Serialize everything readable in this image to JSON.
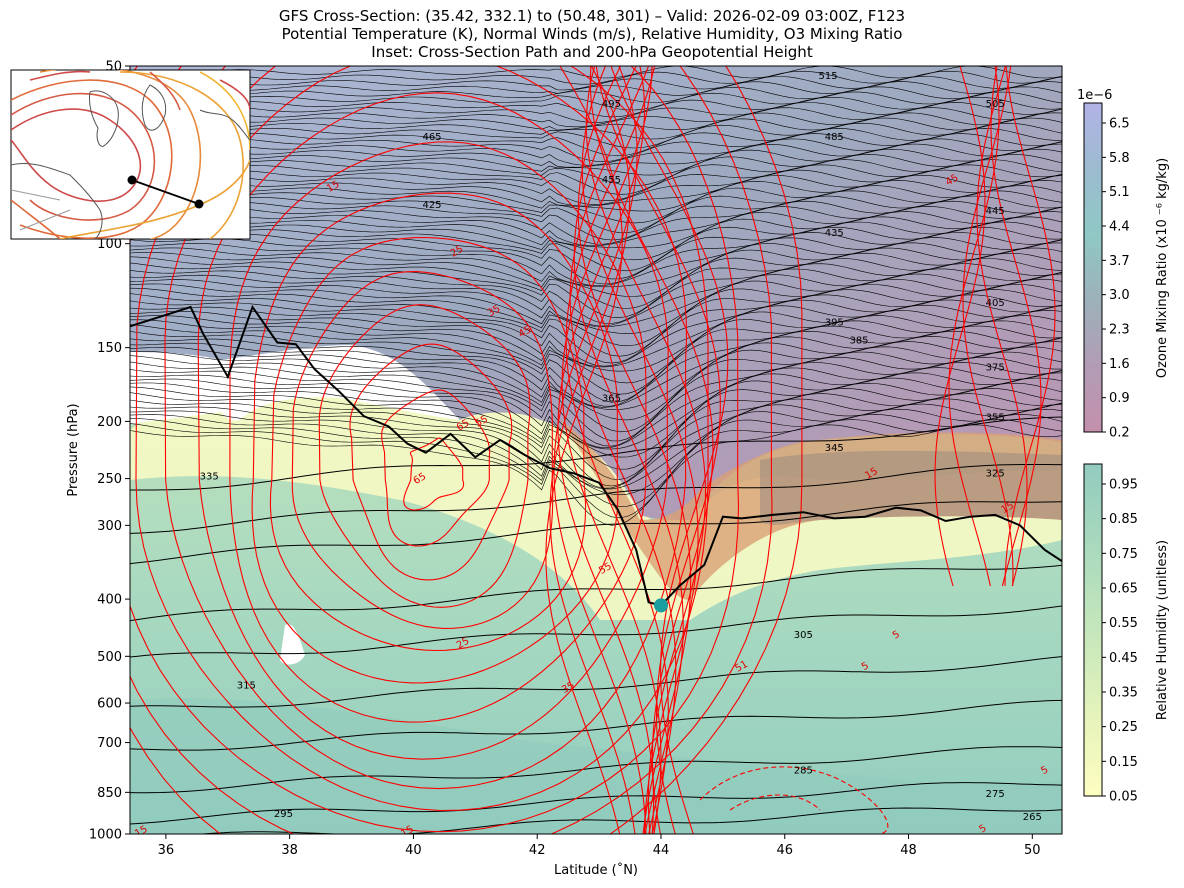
{
  "figure": {
    "title_lines": [
      "GFS Cross-Section: (35.42, 332.1) to (50.48, 301) – Valid: 2026-02-09 03:00Z, F123",
      "Potential Temperature (K), Normal Winds (m/s), Relative Humidity, O3 Mixing Ratio",
      "Inset: Cross-Section Path and 200-hPa Geopotential Height"
    ]
  },
  "chart_data": {
    "type": "cross-section",
    "xlabel": "Latitude (˚N)",
    "ylabel": "Pressure (hPa)",
    "xlim": [
      35.42,
      50.48
    ],
    "ylim": [
      1000,
      50
    ],
    "y_scale": "log",
    "x_ticks": [
      "36",
      "38",
      "40",
      "42",
      "44",
      "46",
      "48",
      "50"
    ],
    "x_tick_values": [
      36,
      38,
      40,
      42,
      44,
      46,
      48,
      50
    ],
    "y_ticks": [
      "50",
      "100",
      "150",
      "200",
      "250",
      "300",
      "400",
      "500",
      "600",
      "700",
      "850",
      "1000"
    ],
    "y_tick_values": [
      50,
      100,
      150,
      200,
      250,
      300,
      400,
      500,
      600,
      700,
      850,
      1000
    ],
    "theta_labels": [
      {
        "value": "515",
        "lat": 46.7,
        "p": 52
      },
      {
        "value": "505",
        "lat": 49.4,
        "p": 58
      },
      {
        "value": "495",
        "lat": 43.2,
        "p": 58
      },
      {
        "value": "485",
        "lat": 46.8,
        "p": 66
      },
      {
        "value": "465",
        "lat": 40.3,
        "p": 66
      },
      {
        "value": "455",
        "lat": 43.2,
        "p": 78
      },
      {
        "value": "445",
        "lat": 49.4,
        "p": 88
      },
      {
        "value": "435",
        "lat": 46.8,
        "p": 96
      },
      {
        "value": "425",
        "lat": 40.3,
        "p": 86
      },
      {
        "value": "405",
        "lat": 49.4,
        "p": 126
      },
      {
        "value": "395",
        "lat": 46.8,
        "p": 136
      },
      {
        "value": "385",
        "lat": 47.2,
        "p": 146
      },
      {
        "value": "375",
        "lat": 49.4,
        "p": 162
      },
      {
        "value": "365",
        "lat": 43.2,
        "p": 183
      },
      {
        "value": "355",
        "lat": 49.4,
        "p": 197
      },
      {
        "value": "345",
        "lat": 46.8,
        "p": 222
      },
      {
        "value": "335",
        "lat": 36.7,
        "p": 248
      },
      {
        "value": "325",
        "lat": 49.4,
        "p": 245
      },
      {
        "value": "315",
        "lat": 37.3,
        "p": 560
      },
      {
        "value": "305",
        "lat": 46.3,
        "p": 460
      },
      {
        "value": "295",
        "lat": 37.9,
        "p": 925
      },
      {
        "value": "285",
        "lat": 46.3,
        "p": 780
      },
      {
        "value": "275",
        "lat": 49.4,
        "p": 855
      },
      {
        "value": "265",
        "lat": 50.0,
        "p": 935
      }
    ],
    "wind_labels": [
      {
        "value": "15",
        "lat": 38.7,
        "p": 80
      },
      {
        "value": "25",
        "lat": 40.7,
        "p": 103
      },
      {
        "value": "35",
        "lat": 41.3,
        "p": 130
      },
      {
        "value": "45",
        "lat": 41.8,
        "p": 141
      },
      {
        "value": "45",
        "lat": 48.7,
        "p": 78
      },
      {
        "value": "55",
        "lat": 41.1,
        "p": 200
      },
      {
        "value": "65",
        "lat": 40.8,
        "p": 203
      },
      {
        "value": "65",
        "lat": 40.1,
        "p": 250
      },
      {
        "value": "55",
        "lat": 43.1,
        "p": 355
      },
      {
        "value": "25",
        "lat": 40.8,
        "p": 475
      },
      {
        "value": "35",
        "lat": 42.5,
        "p": 565
      },
      {
        "value": "51",
        "lat": 45.3,
        "p": 520
      },
      {
        "value": "5",
        "lat": 47.3,
        "p": 520
      },
      {
        "value": "5",
        "lat": 47.8,
        "p": 460
      },
      {
        "value": "15",
        "lat": 47.4,
        "p": 245
      },
      {
        "value": "15",
        "lat": 49.6,
        "p": 280
      },
      {
        "value": "15",
        "lat": 35.6,
        "p": 990
      },
      {
        "value": "15",
        "lat": 39.9,
        "p": 990
      },
      {
        "value": "5",
        "lat": 49.2,
        "p": 980
      },
      {
        "value": "5",
        "lat": 50.2,
        "p": 780
      }
    ],
    "dynamic_tropopause": {
      "lat": [
        35.42,
        36.0,
        36.4,
        36.6,
        37.0,
        37.4,
        37.8,
        38.1,
        38.4,
        38.8,
        39.2,
        39.6,
        39.9,
        40.2,
        40.6,
        41.0,
        41.4,
        41.8,
        42.2,
        42.6,
        43.0,
        43.3,
        43.6,
        43.8,
        44.0,
        44.3,
        44.7,
        45.0,
        45.3,
        45.8,
        46.3,
        46.8,
        47.3,
        47.8,
        48.2,
        48.6,
        49.0,
        49.4,
        49.8,
        50.2,
        50.48
      ],
      "p": [
        138,
        132,
        128,
        142,
        168,
        128,
        147,
        148,
        163,
        178,
        196,
        204,
        218,
        226,
        210,
        230,
        215,
        228,
        240,
        245,
        254,
        282,
        330,
        405,
        410,
        380,
        350,
        290,
        292,
        288,
        285,
        292,
        290,
        280,
        283,
        295,
        290,
        288,
        300,
        330,
        345
      ]
    },
    "marker": {
      "lat": 44.0,
      "p": 410,
      "color": "#1a9e9e"
    },
    "colorbars": [
      {
        "label": "Ozone Mixing Ratio (x10 ⁻⁶ kg/kg)",
        "multiplier": "1e−6",
        "ticks": [
          "6.5",
          "5.8",
          "5.1",
          "4.4",
          "3.7",
          "3.0",
          "2.3",
          "1.6",
          "0.9",
          "0.2"
        ],
        "colormap": [
          "#c490ac",
          "#b49bb4",
          "#a0aab8",
          "#8fbcbc",
          "#8ec8c4",
          "#9ab8cc",
          "#a8acd8",
          "#b3b2e8"
        ]
      },
      {
        "label": "Relative Humidity (unitless)",
        "ticks": [
          "0.95",
          "0.85",
          "0.75",
          "0.65",
          "0.55",
          "0.45",
          "0.35",
          "0.25",
          "0.15",
          "0.05"
        ],
        "colormap": [
          "#fdfec2",
          "#eef6bc",
          "#d2ecbb",
          "#b7e0bb",
          "#a2d5c0",
          "#92ccbf"
        ]
      }
    ],
    "inset": {
      "title": "Inset: Cross-Section Path and 200-hPa Geopotential Height",
      "path_start": {
        "lat": 35.42,
        "lon": 332.1
      },
      "path_end": {
        "lat": 50.48,
        "lon": 301
      }
    },
    "colors": {
      "theta": "#000000",
      "winds": "#ff0000",
      "tropopause": "#000000"
    },
    "grid": false
  }
}
